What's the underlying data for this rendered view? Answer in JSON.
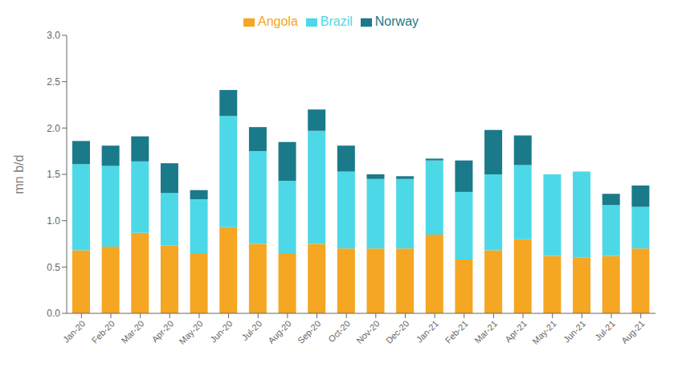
{
  "chart_data": {
    "type": "bar",
    "stacked": true,
    "categories": [
      "Jan-20",
      "Feb-20",
      "Mar-20",
      "Apr-20",
      "May-20",
      "Jun-20",
      "Jul-20",
      "Aug-20",
      "Sep-20",
      "Oct-20",
      "Nov-20",
      "Dec-20",
      "Jan-21",
      "Feb-21",
      "Mar-21",
      "Apr-21",
      "May-21",
      "Jun-21",
      "Jul-21",
      "Aug-21"
    ],
    "series": [
      {
        "name": "Angola",
        "color": "#F5A623",
        "values": [
          0.68,
          0.72,
          0.87,
          0.73,
          0.65,
          0.93,
          0.75,
          0.65,
          0.75,
          0.7,
          0.7,
          0.7,
          0.85,
          0.58,
          0.68,
          0.8,
          0.62,
          0.6,
          0.62,
          0.7
        ]
      },
      {
        "name": "Brazil",
        "color": "#4DD8E8",
        "values": [
          0.93,
          0.87,
          0.77,
          0.57,
          0.58,
          1.2,
          1.0,
          0.78,
          1.22,
          0.83,
          0.75,
          0.75,
          0.8,
          0.73,
          0.82,
          0.8,
          0.88,
          0.93,
          0.55,
          0.45
        ]
      },
      {
        "name": "Norway",
        "color": "#1A7A8A",
        "values": [
          0.25,
          0.22,
          0.27,
          0.32,
          0.1,
          0.28,
          0.26,
          0.42,
          0.23,
          0.28,
          0.05,
          0.03,
          0.02,
          0.34,
          0.48,
          0.32,
          0.0,
          0.0,
          0.12,
          0.23
        ]
      }
    ],
    "ylabel": "mn b/d",
    "ylim": [
      0,
      3.0
    ],
    "yticks": [
      {
        "value": 0,
        "label": "0.0"
      },
      {
        "value": 0.5,
        "label": "0.5"
      },
      {
        "value": 1,
        "label": "1.0"
      },
      {
        "value": 1.5,
        "label": "1.5"
      },
      {
        "value": 2,
        "label": "2.0"
      },
      {
        "value": 2.5,
        "label": "2.5"
      },
      {
        "value": 3,
        "label": "3.0"
      }
    ],
    "grid": false,
    "legend": "upper center"
  }
}
